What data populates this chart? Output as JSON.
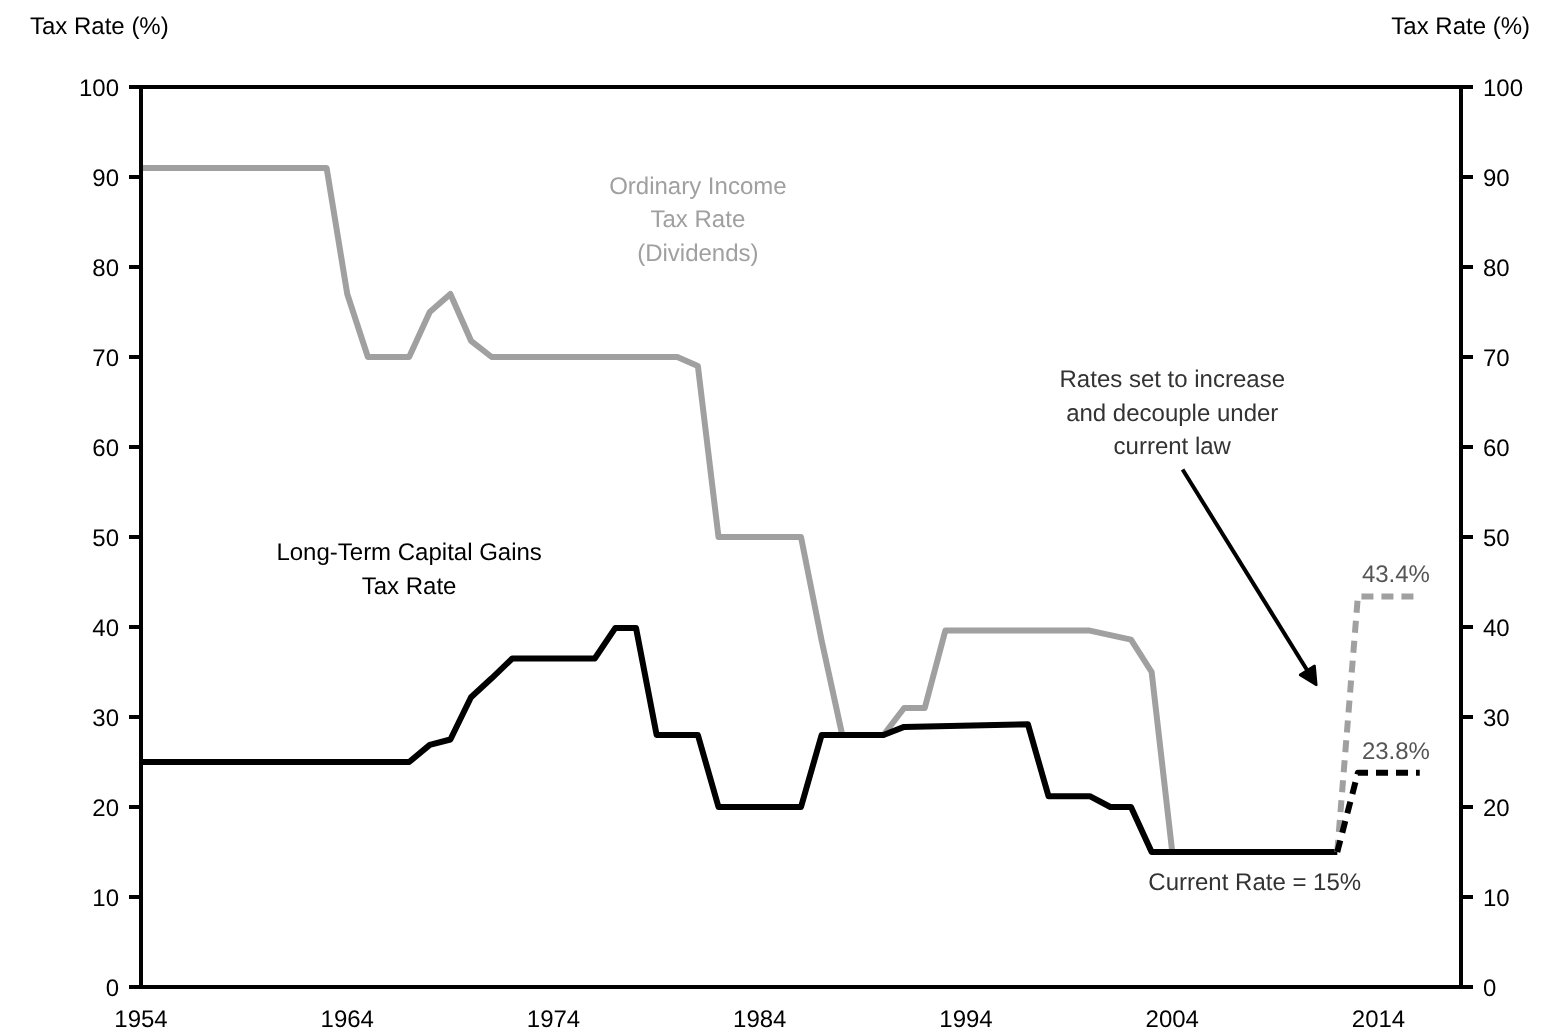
{
  "chart_data": {
    "type": "line",
    "ylabel": "Tax Rate (%)",
    "y2label": "Tax Rate (%)",
    "xlim": [
      1954,
      2018
    ],
    "xticks": [
      1954,
      1964,
      1974,
      1984,
      1994,
      2004,
      2014
    ],
    "ylim": [
      0,
      100
    ],
    "yticks": [
      0,
      10,
      20,
      30,
      40,
      50,
      60,
      70,
      80,
      90,
      100
    ],
    "y2lim": [
      0,
      100
    ],
    "y2ticks": [
      0,
      10,
      20,
      30,
      40,
      50,
      60,
      70,
      80,
      90,
      100
    ],
    "grid": false,
    "marker": "none",
    "series": [
      {
        "name": "Ordinary Income Tax Rate (Dividends)",
        "color": "#a0a0a0",
        "line_style": "solid",
        "x": [
          1954,
          1963,
          1964,
          1965,
          1967,
          1968,
          1969,
          1970,
          1971,
          1980,
          1981,
          1982,
          1986,
          1987,
          1988,
          1990,
          1991,
          1992,
          1993,
          2000,
          2001,
          2002,
          2003,
          2004,
          2012
        ],
        "values": [
          91,
          91,
          77,
          70,
          70,
          75,
          77,
          71.8,
          70,
          70,
          69,
          50,
          50,
          38.5,
          28,
          28,
          31,
          31,
          39.6,
          39.6,
          39.1,
          38.6,
          35,
          15,
          15
        ]
      },
      {
        "name": "Long-Term Capital Gains Tax Rate",
        "color": "#000000",
        "line_style": "solid",
        "x": [
          1954,
          1967,
          1968,
          1969,
          1970,
          1971,
          1972,
          1976,
          1977,
          1978,
          1979,
          1981,
          1982,
          1986,
          1987,
          1990,
          1991,
          1997,
          1998,
          2000,
          2001,
          2002,
          2003,
          2012
        ],
        "values": [
          25,
          25,
          26.9,
          27.5,
          32.2,
          34.3,
          36.5,
          36.5,
          39.9,
          39.9,
          28,
          28,
          20,
          20,
          28,
          28,
          28.9,
          29.2,
          21.2,
          21.2,
          20,
          20,
          15,
          15
        ]
      },
      {
        "color": "#a0a0a0",
        "line_style": "dashed",
        "x": [
          2012,
          2013,
          2016
        ],
        "values": [
          15,
          43.4,
          43.4
        ],
        "value_labels": [
          null,
          "43.4%",
          null
        ]
      },
      {
        "color": "#000000",
        "line_style": "dashed",
        "x": [
          2012,
          2013,
          2016
        ],
        "values": [
          15,
          23.8,
          23.8
        ],
        "value_labels": [
          null,
          "23.8%",
          null
        ]
      }
    ],
    "annotations": [
      "Rates set to increase and decouple under current law",
      "Current Rate = 15%"
    ]
  }
}
